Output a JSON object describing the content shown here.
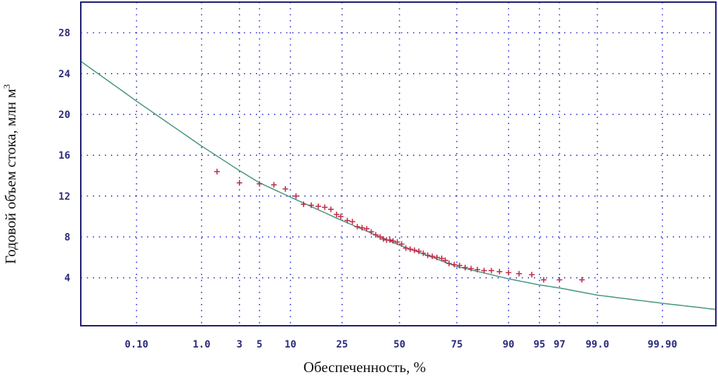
{
  "chart_data": {
    "type": "scatter",
    "title": "",
    "xlabel": "Обеспеченность, %",
    "ylabel": "Годовой объем стока, млн м",
    "ylabel_sup": "3",
    "x_scale": "probability",
    "x_ticks": [
      {
        "label": "0.10",
        "p": 0.1
      },
      {
        "label": "1.0",
        "p": 1
      },
      {
        "label": "3",
        "p": 3
      },
      {
        "label": "5",
        "p": 5
      },
      {
        "label": "10",
        "p": 10
      },
      {
        "label": "25",
        "p": 25
      },
      {
        "label": "50",
        "p": 50
      },
      {
        "label": "75",
        "p": 75
      },
      {
        "label": "90",
        "p": 90
      },
      {
        "label": "95",
        "p": 95
      },
      {
        "label": "97",
        "p": 97
      },
      {
        "label": "99.0",
        "p": 99
      },
      {
        "label": "99.90",
        "p": 99.9
      }
    ],
    "x_grid": [
      0.1,
      1,
      3,
      5,
      10,
      25,
      50,
      75,
      90,
      95,
      97,
      99,
      99.9
    ],
    "y_ticks": [
      "4",
      "8",
      "12",
      "16",
      "20",
      "24",
      "28"
    ],
    "ylim": [
      -0.7,
      31
    ],
    "xlim": [
      0.009,
      99.99
    ],
    "grid": true,
    "legend": "none",
    "colors": {
      "points": "#c0304a",
      "curve": "#4f9a84",
      "grid": "#2a2ad0",
      "ticks": "#2b2b7a",
      "frame": "#1a1a6e"
    },
    "series": [
      {
        "type": "curve",
        "points": [
          [
            0.009,
            25.2
          ],
          [
            0.1,
            21.3
          ],
          [
            1,
            16.9
          ],
          [
            3,
            14.5
          ],
          [
            5,
            13.3
          ],
          [
            10,
            11.9
          ],
          [
            25,
            9.6
          ],
          [
            50,
            7.2
          ],
          [
            75,
            5.1
          ],
          [
            90,
            3.9
          ],
          [
            95,
            3.3
          ],
          [
            97,
            3.0
          ],
          [
            99,
            2.3
          ],
          [
            99.9,
            1.5
          ],
          [
            99.99,
            0.9
          ]
        ]
      },
      {
        "type": "scatter",
        "points": [
          [
            1.6,
            14.4
          ],
          [
            3,
            13.3
          ],
          [
            5,
            13.2
          ],
          [
            7,
            13.1
          ],
          [
            9,
            12.7
          ],
          [
            11.2,
            12.0
          ],
          [
            13,
            11.2
          ],
          [
            15,
            11.1
          ],
          [
            17,
            11.0
          ],
          [
            19,
            10.9
          ],
          [
            21,
            10.7
          ],
          [
            23,
            10.2
          ],
          [
            24.5,
            10.0
          ],
          [
            27,
            9.6
          ],
          [
            29,
            9.5
          ],
          [
            31,
            9.0
          ],
          [
            33,
            8.9
          ],
          [
            35,
            8.8
          ],
          [
            37,
            8.5
          ],
          [
            39,
            8.2
          ],
          [
            41,
            8.0
          ],
          [
            42.5,
            7.8
          ],
          [
            44,
            7.7
          ],
          [
            45.5,
            7.7
          ],
          [
            47,
            7.6
          ],
          [
            49,
            7.5
          ],
          [
            51,
            7.3
          ],
          [
            53,
            6.9
          ],
          [
            55,
            6.8
          ],
          [
            57,
            6.7
          ],
          [
            59,
            6.6
          ],
          [
            61,
            6.4
          ],
          [
            63,
            6.2
          ],
          [
            65,
            6.1
          ],
          [
            67,
            6.0
          ],
          [
            69,
            5.9
          ],
          [
            70.5,
            5.7
          ],
          [
            72,
            5.4
          ],
          [
            74,
            5.3
          ],
          [
            76,
            5.2
          ],
          [
            78,
            5.0
          ],
          [
            80,
            4.9
          ],
          [
            82,
            4.8
          ],
          [
            84,
            4.7
          ],
          [
            86,
            4.7
          ],
          [
            88,
            4.6
          ],
          [
            90,
            4.5
          ],
          [
            92,
            4.4
          ],
          [
            94,
            4.3
          ],
          [
            95.5,
            3.8
          ],
          [
            97,
            3.8
          ],
          [
            98.4,
            3.8
          ]
        ]
      }
    ]
  }
}
